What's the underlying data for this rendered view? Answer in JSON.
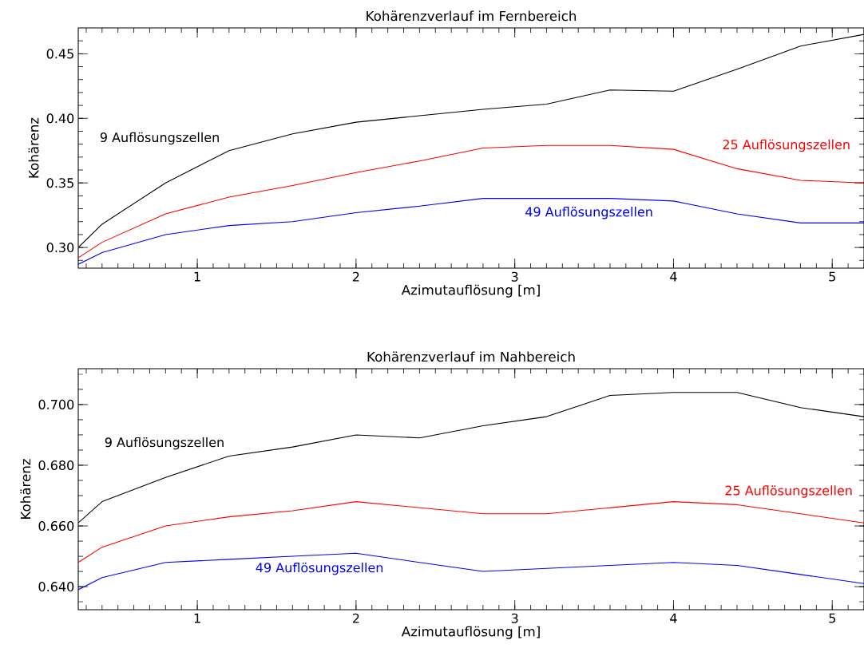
{
  "chart_data": [
    {
      "type": "line",
      "title": "Kohärenzverlauf im Fernbereich",
      "xlabel": "Azimutauflösung [m]",
      "ylabel": "Kohärenz",
      "x": [
        0.25,
        0.4,
        0.8,
        1.2,
        1.6,
        2.0,
        2.4,
        2.8,
        3.2,
        3.6,
        4.0,
        4.4,
        4.8,
        5.2
      ],
      "series": [
        {
          "name": "9 Auflösungszellen",
          "color": "#000000",
          "values": [
            0.3,
            0.318,
            0.35,
            0.375,
            0.388,
            0.397,
            0.402,
            0.407,
            0.411,
            0.422,
            0.421,
            0.438,
            0.456,
            0.465
          ]
        },
        {
          "name": "25 Auflösungszellen",
          "color": "#ff0000",
          "values": [
            0.292,
            0.304,
            0.326,
            0.339,
            0.348,
            0.358,
            0.367,
            0.377,
            0.379,
            0.379,
            0.376,
            0.361,
            0.352,
            0.35
          ]
        },
        {
          "name": "49 Auflösungszellen",
          "color": "#0000ff",
          "values": [
            0.287,
            0.296,
            0.31,
            0.317,
            0.32,
            0.327,
            0.332,
            0.338,
            0.338,
            0.338,
            0.336,
            0.326,
            0.319,
            0.319
          ]
        }
      ],
      "xlim": [
        0.25,
        5.2
      ],
      "ylim": [
        0.284,
        0.47
      ],
      "xticks": [
        1,
        2,
        3,
        4,
        5
      ],
      "yticks": [
        {
          "value": 0.3,
          "label": "0.30"
        },
        {
          "value": 0.35,
          "label": "0.35"
        },
        {
          "value": 0.4,
          "label": "0.40"
        },
        {
          "value": 0.45,
          "label": "0.45"
        }
      ]
    },
    {
      "type": "line",
      "title": "Kohärenzverlauf im Nahbereich",
      "xlabel": "Azimutauflösung [m]",
      "ylabel": "Kohärenz",
      "x": [
        0.25,
        0.4,
        0.8,
        1.2,
        1.6,
        2.0,
        2.4,
        2.8,
        3.2,
        3.6,
        4.0,
        4.4,
        4.8,
        5.2
      ],
      "series": [
        {
          "name": "9 Auflösungszellen",
          "color": "#000000",
          "values": [
            0.661,
            0.668,
            0.676,
            0.683,
            0.686,
            0.69,
            0.689,
            0.693,
            0.696,
            0.703,
            0.704,
            0.704,
            0.699,
            0.696
          ]
        },
        {
          "name": "25 Auflösungszellen",
          "color": "#ff0000",
          "values": [
            0.648,
            0.653,
            0.66,
            0.663,
            0.665,
            0.668,
            0.666,
            0.664,
            0.664,
            0.666,
            0.668,
            0.667,
            0.664,
            0.661
          ]
        },
        {
          "name": "49 Auflösungszellen",
          "color": "#0000ff",
          "values": [
            0.639,
            0.643,
            0.648,
            0.649,
            0.65,
            0.651,
            0.648,
            0.645,
            0.646,
            0.647,
            0.648,
            0.647,
            0.644,
            0.641
          ]
        }
      ],
      "xlim": [
        0.25,
        5.2
      ],
      "ylim": [
        0.6324,
        0.7118
      ],
      "xticks": [
        1,
        2,
        3,
        4,
        5
      ],
      "yticks": [
        {
          "value": 0.64,
          "label": "0.640"
        },
        {
          "value": 0.66,
          "label": "0.660"
        },
        {
          "value": 0.68,
          "label": "0.680"
        },
        {
          "value": 0.7,
          "label": "0.700"
        }
      ]
    }
  ]
}
